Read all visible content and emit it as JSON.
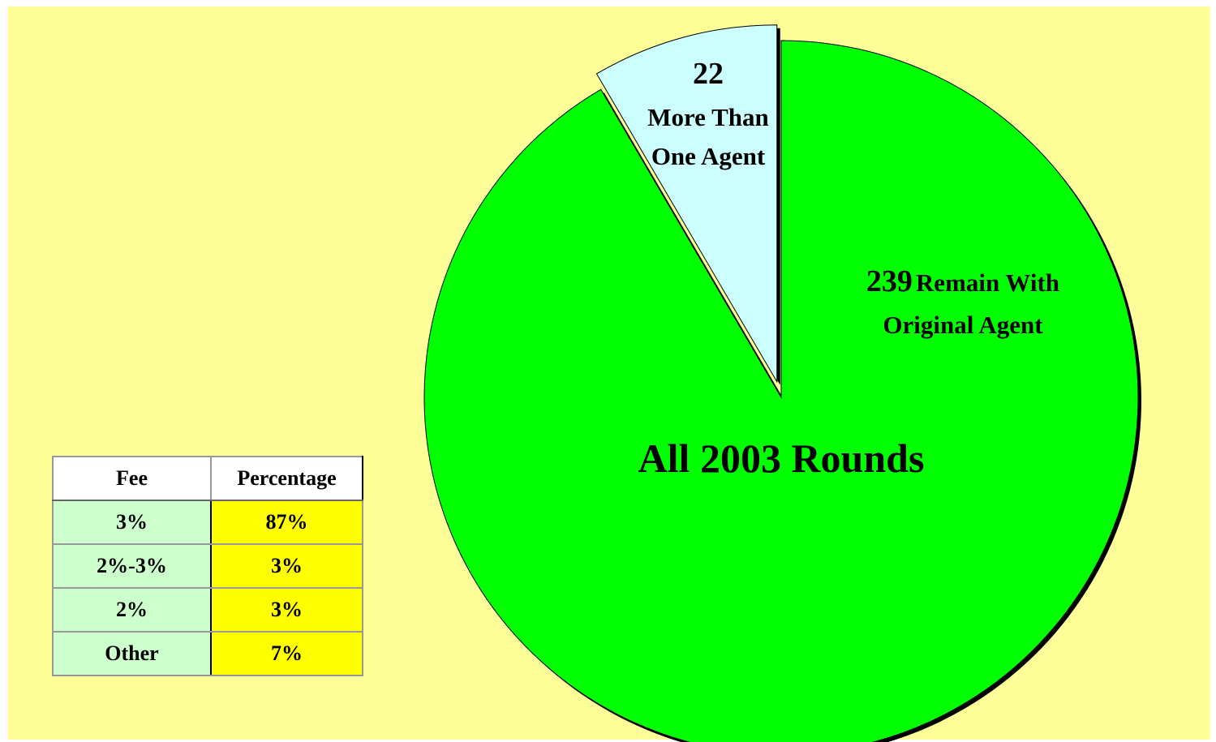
{
  "chart_data": {
    "type": "pie",
    "title": "All 2003 Rounds",
    "categories": [
      "Remain With Original Agent",
      "More Than One Agent"
    ],
    "values": [
      239,
      22
    ],
    "colors": [
      "#00ff00",
      "#ccffff"
    ]
  },
  "table": {
    "header": [
      "Fee",
      "Percentage"
    ],
    "rows": [
      [
        "3%",
        "87%"
      ],
      [
        "2%-3%",
        "3%"
      ],
      [
        "2%",
        "3%"
      ],
      [
        "Other",
        "7%"
      ]
    ]
  }
}
